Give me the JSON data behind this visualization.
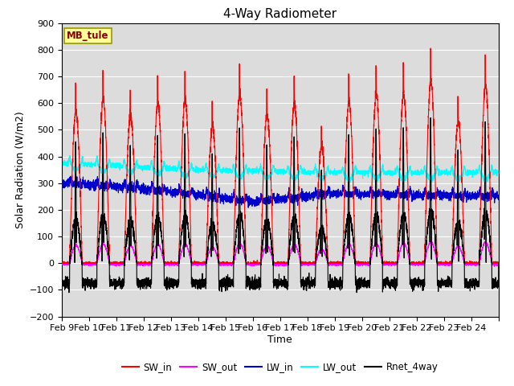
{
  "title": "4-Way Radiometer",
  "xlabel": "Time",
  "ylabel": "Solar Radiation (W/m2)",
  "ylim": [
    -200,
    900
  ],
  "yticks": [
    -200,
    -100,
    0,
    100,
    200,
    300,
    400,
    500,
    600,
    700,
    800,
    900
  ],
  "x_labels": [
    "Feb 9",
    "Feb 10",
    "Feb 11",
    "Feb 12",
    "Feb 13",
    "Feb 14",
    "Feb 15",
    "Feb 16",
    "Feb 17",
    "Feb 18",
    "Feb 19",
    "Feb 20",
    "Feb 21",
    "Feb 22",
    "Feb 23",
    "Feb 24"
  ],
  "station_label": "MB_tule",
  "colors": {
    "SW_in": "#FF0000",
    "SW_out": "#FF00FF",
    "LW_in": "#0000CC",
    "LW_out": "#00FFFF",
    "Rnet_4way": "#000000"
  },
  "bg_color": "#DCDCDC",
  "n_days": 16,
  "pts_per_day": 288,
  "sw_in_peaks": [
    670,
    720,
    650,
    705,
    715,
    605,
    748,
    655,
    700,
    515,
    710,
    742,
    748,
    802,
    625,
    780
  ],
  "lw_out_base": 360,
  "lw_in_base": 275,
  "night_rnet": -75
}
